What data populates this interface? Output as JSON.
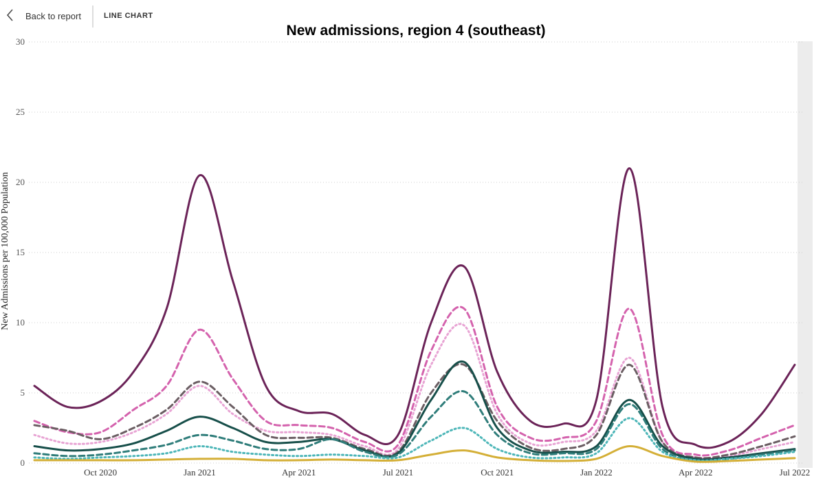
{
  "header": {
    "back": "Back to report",
    "view": "LINE CHART"
  },
  "chart_data": {
    "type": "line",
    "title": "New admissions, region 4 (southeast)",
    "y_label": "New Admissions per 100,000 Population",
    "x": [
      "2020-08",
      "2020-09",
      "2020-10",
      "2020-11",
      "2020-12",
      "2021-01",
      "2021-02",
      "2021-03",
      "2021-04",
      "2021-05",
      "2021-06",
      "2021-07",
      "2021-08",
      "2021-09",
      "2021-10",
      "2021-11",
      "2021-12",
      "2022-01",
      "2022-02",
      "2022-03",
      "2022-04",
      "2022-05",
      "2022-06",
      "2022-07"
    ],
    "xlim": [
      "2020-08",
      "2022-07"
    ],
    "xticks": [
      {
        "value": "2020-10",
        "label": "Oct 2020"
      },
      {
        "value": "2021-01",
        "label": "Jan 2021"
      },
      {
        "value": "2021-04",
        "label": "Apr 2021"
      },
      {
        "value": "2021-07",
        "label": "Jul 2021"
      },
      {
        "value": "2021-10",
        "label": "Oct 2021"
      },
      {
        "value": "2022-01",
        "label": "Jan 2022"
      },
      {
        "value": "2022-04",
        "label": "Apr 2022"
      },
      {
        "value": "2022-07",
        "label": "Jul 2022"
      }
    ],
    "ylim": [
      0,
      30
    ],
    "yticks": [
      0,
      5,
      10,
      15,
      20,
      25,
      30
    ],
    "grid": true,
    "series": [
      {
        "color": "#6b2358",
        "style": "solid",
        "values": [
          5.5,
          4.0,
          4.4,
          6.5,
          11,
          20.5,
          13,
          5.5,
          3.7,
          3.5,
          2.0,
          2.0,
          10,
          14,
          6.5,
          3.0,
          2.8,
          4.5,
          21,
          4.0,
          1.3,
          1.5,
          3.5,
          7.0
        ]
      },
      {
        "color": "#d462ad",
        "style": "dashed",
        "values": [
          3.0,
          2.2,
          2.2,
          3.8,
          5.5,
          9.5,
          6.0,
          3.0,
          2.7,
          2.5,
          1.5,
          1.3,
          8.0,
          11,
          4.0,
          1.8,
          1.8,
          3.0,
          11,
          2.0,
          0.6,
          0.9,
          1.8,
          2.7
        ]
      },
      {
        "color": "#e8a4d4",
        "style": "dotted",
        "values": [
          2.0,
          1.4,
          1.5,
          2.2,
          3.5,
          5.5,
          3.5,
          2.3,
          2.2,
          2.0,
          1.2,
          1.0,
          7,
          9.8,
          3.5,
          1.4,
          1.5,
          2.3,
          7.5,
          1.5,
          0.4,
          0.5,
          1.0,
          1.5
        ]
      },
      {
        "color": "#6b5e63",
        "style": "dashed",
        "values": [
          2.7,
          2.3,
          1.7,
          2.5,
          3.8,
          5.8,
          4.0,
          2.0,
          1.8,
          1.8,
          1.0,
          0.8,
          5,
          7,
          3,
          1.1,
          1.0,
          2,
          7,
          1.5,
          0.4,
          0.6,
          1.2,
          1.9
        ]
      },
      {
        "color": "#174f4a",
        "style": "solid",
        "values": [
          1.2,
          0.9,
          1.0,
          1.4,
          2.3,
          3.3,
          2.5,
          1.5,
          1.5,
          1.7,
          0.9,
          0.7,
          4.5,
          7.2,
          2.5,
          0.9,
          0.8,
          1.2,
          4.5,
          1.2,
          0.3,
          0.4,
          0.7,
          1.0
        ]
      },
      {
        "color": "#2f7d7a",
        "style": "dashed",
        "values": [
          0.7,
          0.5,
          0.6,
          0.9,
          1.3,
          2.0,
          1.6,
          1.0,
          1.0,
          1.7,
          0.8,
          0.6,
          3.3,
          5.1,
          2.0,
          0.7,
          0.7,
          1.0,
          4.2,
          1.0,
          0.2,
          0.3,
          0.6,
          0.9
        ]
      },
      {
        "color": "#4db6b8",
        "style": "dotted",
        "values": [
          0.4,
          0.3,
          0.4,
          0.5,
          0.7,
          1.2,
          0.8,
          0.6,
          0.5,
          0.6,
          0.5,
          0.4,
          1.6,
          2.5,
          1.0,
          0.4,
          0.4,
          0.7,
          3.2,
          0.8,
          0.2,
          0.3,
          0.5,
          0.8
        ]
      },
      {
        "color": "#d4af37",
        "style": "solid",
        "values": [
          0.2,
          0.2,
          0.2,
          0.2,
          0.25,
          0.3,
          0.3,
          0.2,
          0.2,
          0.25,
          0.2,
          0.2,
          0.6,
          0.9,
          0.4,
          0.2,
          0.15,
          0.3,
          1.2,
          0.5,
          0.1,
          0.15,
          0.25,
          0.35
        ]
      }
    ]
  }
}
